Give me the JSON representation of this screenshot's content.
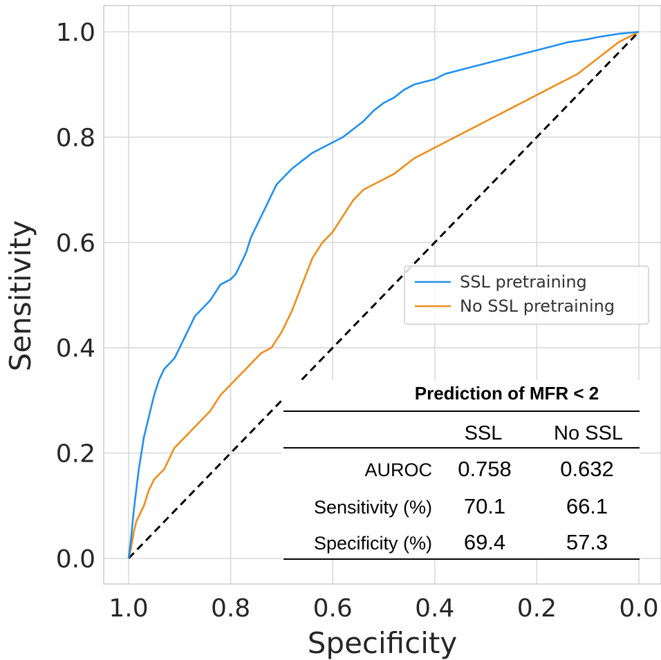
{
  "chart_data": {
    "type": "line",
    "xlabel": "Specificity",
    "ylabel": "Sensitivity",
    "xlim": [
      1.0,
      0.0
    ],
    "ylim": [
      0.0,
      1.0
    ],
    "x_reversed": true,
    "grid": true,
    "xticks": [
      "1.0",
      "0.8",
      "0.6",
      "0.4",
      "0.2",
      "0.0"
    ],
    "yticks": [
      "0.0",
      "0.2",
      "0.4",
      "0.6",
      "0.8",
      "1.0"
    ],
    "legend_position": "center-right",
    "series": [
      {
        "name": "SSL pretraining",
        "color": "#1f8ff0",
        "x": [
          1.0,
          0.995,
          0.99,
          0.985,
          0.98,
          0.975,
          0.97,
          0.965,
          0.96,
          0.955,
          0.95,
          0.94,
          0.93,
          0.92,
          0.91,
          0.9,
          0.89,
          0.88,
          0.87,
          0.86,
          0.84,
          0.82,
          0.8,
          0.79,
          0.78,
          0.77,
          0.76,
          0.75,
          0.74,
          0.73,
          0.72,
          0.71,
          0.7,
          0.68,
          0.66,
          0.64,
          0.62,
          0.6,
          0.58,
          0.56,
          0.54,
          0.52,
          0.5,
          0.48,
          0.46,
          0.44,
          0.42,
          0.4,
          0.38,
          0.36,
          0.34,
          0.32,
          0.3,
          0.28,
          0.26,
          0.24,
          0.22,
          0.2,
          0.18,
          0.16,
          0.14,
          0.12,
          0.1,
          0.08,
          0.06,
          0.04,
          0.02,
          0.01,
          0.0
        ],
        "y": [
          0.0,
          0.04,
          0.09,
          0.13,
          0.17,
          0.2,
          0.23,
          0.25,
          0.27,
          0.29,
          0.31,
          0.34,
          0.36,
          0.37,
          0.38,
          0.4,
          0.42,
          0.44,
          0.46,
          0.47,
          0.49,
          0.52,
          0.53,
          0.54,
          0.56,
          0.58,
          0.61,
          0.63,
          0.65,
          0.67,
          0.69,
          0.71,
          0.72,
          0.74,
          0.755,
          0.77,
          0.78,
          0.79,
          0.8,
          0.815,
          0.83,
          0.85,
          0.865,
          0.875,
          0.89,
          0.9,
          0.905,
          0.91,
          0.92,
          0.925,
          0.93,
          0.935,
          0.94,
          0.945,
          0.95,
          0.955,
          0.96,
          0.965,
          0.97,
          0.975,
          0.98,
          0.983,
          0.986,
          0.99,
          0.993,
          0.996,
          0.998,
          0.999,
          1.0
        ]
      },
      {
        "name": "No SSL pretraining",
        "color": "#f08c1a",
        "x": [
          1.0,
          0.995,
          0.99,
          0.985,
          0.98,
          0.975,
          0.97,
          0.96,
          0.95,
          0.94,
          0.93,
          0.92,
          0.91,
          0.9,
          0.88,
          0.86,
          0.84,
          0.82,
          0.8,
          0.78,
          0.76,
          0.74,
          0.72,
          0.7,
          0.68,
          0.66,
          0.64,
          0.62,
          0.6,
          0.58,
          0.56,
          0.54,
          0.52,
          0.5,
          0.48,
          0.46,
          0.44,
          0.42,
          0.4,
          0.38,
          0.36,
          0.34,
          0.32,
          0.3,
          0.28,
          0.26,
          0.24,
          0.22,
          0.2,
          0.18,
          0.16,
          0.14,
          0.12,
          0.1,
          0.08,
          0.06,
          0.04,
          0.02,
          0.0
        ],
        "y": [
          0.0,
          0.02,
          0.05,
          0.07,
          0.08,
          0.09,
          0.1,
          0.13,
          0.15,
          0.16,
          0.17,
          0.19,
          0.21,
          0.22,
          0.24,
          0.26,
          0.28,
          0.31,
          0.33,
          0.35,
          0.37,
          0.39,
          0.4,
          0.43,
          0.47,
          0.52,
          0.57,
          0.6,
          0.62,
          0.65,
          0.68,
          0.7,
          0.71,
          0.72,
          0.73,
          0.745,
          0.76,
          0.77,
          0.78,
          0.79,
          0.8,
          0.81,
          0.82,
          0.83,
          0.84,
          0.85,
          0.86,
          0.87,
          0.88,
          0.89,
          0.9,
          0.91,
          0.92,
          0.935,
          0.95,
          0.965,
          0.98,
          0.99,
          1.0
        ]
      }
    ],
    "reference_line": {
      "x": [
        1.0,
        0.0
      ],
      "y": [
        0.0,
        1.0
      ],
      "color": "#000000",
      "style": "dashed"
    }
  },
  "table": {
    "title": "Prediction of MFR < 2",
    "columns": [
      "SSL",
      "No SSL"
    ],
    "rows": [
      {
        "label": "AUROC",
        "ssl": "0.758",
        "no_ssl": "0.632"
      },
      {
        "label": "Sensitivity (%)",
        "ssl": "70.1",
        "no_ssl": "66.1"
      },
      {
        "label": "Specificity (%)",
        "ssl": "69.4",
        "no_ssl": "57.3"
      }
    ]
  }
}
